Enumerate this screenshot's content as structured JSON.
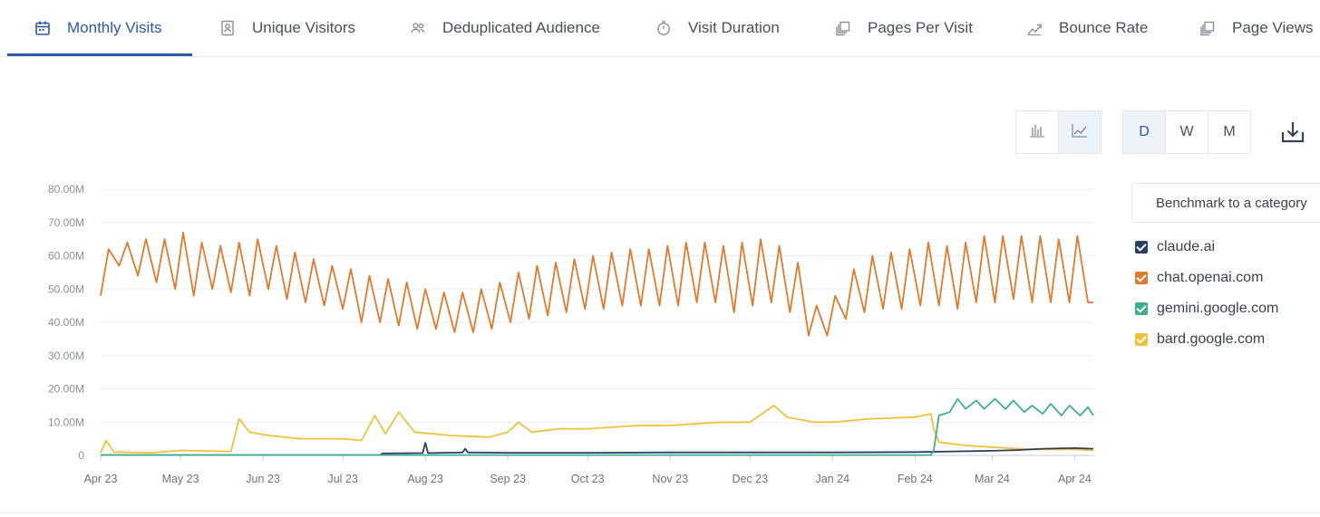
{
  "tabs": [
    {
      "label": "Monthly Visits",
      "icon": "calendar-icon",
      "active": true
    },
    {
      "label": "Unique Visitors",
      "icon": "person-card-icon"
    },
    {
      "label": "Deduplicated Audience",
      "icon": "people-icon"
    },
    {
      "label": "Visit Duration",
      "icon": "stopwatch-icon"
    },
    {
      "label": "Pages Per Visit",
      "icon": "pages-icon"
    },
    {
      "label": "Bounce Rate",
      "icon": "trend-icon"
    },
    {
      "label": "Page Views",
      "icon": "pages-icon"
    }
  ],
  "controls": {
    "chart_type_icons": [
      "bar-chart-icon",
      "line-chart-icon"
    ],
    "granularity": [
      "D",
      "W",
      "M"
    ],
    "selected_granularity": "D",
    "download_icon": "download-icon"
  },
  "benchmark": {
    "label": "Benchmark to a category"
  },
  "colors": {
    "claude": "#2c3e66",
    "openai": "#e07a2e",
    "gemini": "#3fae8c",
    "bard": "#efc23c",
    "accent": "#2b59a6"
  },
  "chart_data": {
    "type": "line",
    "title": "",
    "xlabel": "",
    "ylabel": "",
    "x_range": [
      "2023-04-01",
      "2024-04-08"
    ],
    "ylim": [
      0,
      80000000
    ],
    "y_ticks": [
      "80.00M",
      "70.00M",
      "60.00M",
      "50.00M",
      "40.00M",
      "30.00M",
      "20.00M",
      "10.00M",
      "0"
    ],
    "x_ticks": [
      "Apr 23",
      "May 23",
      "Jun 23",
      "Jul 23",
      "Aug 23",
      "Sep 23",
      "Oct 23",
      "Nov 23",
      "Dec 23",
      "Jan 24",
      "Feb 24",
      "Mar 24",
      "Apr 24"
    ],
    "grid": true,
    "legend_position": "right",
    "series": [
      {
        "name": "claude.ai",
        "color": "#2c3e66",
        "points": [
          [
            "2023-04-01",
            0.1
          ],
          [
            "2023-07-15",
            0.1
          ],
          [
            "2023-07-16",
            0.6
          ],
          [
            "2023-07-31",
            0.7
          ],
          [
            "2023-08-01",
            3.8
          ],
          [
            "2023-08-02",
            0.7
          ],
          [
            "2023-08-15",
            0.9
          ],
          [
            "2023-08-16",
            2.0
          ],
          [
            "2023-08-17",
            0.9
          ],
          [
            "2023-09-01",
            0.8
          ],
          [
            "2023-10-01",
            0.8
          ],
          [
            "2023-11-01",
            0.9
          ],
          [
            "2023-12-01",
            0.9
          ],
          [
            "2024-01-01",
            0.9
          ],
          [
            "2024-02-01",
            1.0
          ],
          [
            "2024-03-01",
            1.4
          ],
          [
            "2024-03-10",
            1.6
          ],
          [
            "2024-03-20",
            2.0
          ],
          [
            "2024-04-01",
            2.2
          ],
          [
            "2024-04-08",
            2.0
          ]
        ]
      },
      {
        "name": "chat.openai.com",
        "color": "#e07a2e",
        "weekly_pattern": "7-day cycle, weekday peaks and weekend troughs",
        "points": [
          [
            "2023-04-01",
            48
          ],
          [
            "2023-04-04",
            62
          ],
          [
            "2023-04-08",
            57
          ],
          [
            "2023-04-11",
            64
          ],
          [
            "2023-04-15",
            54
          ],
          [
            "2023-04-18",
            65
          ],
          [
            "2023-04-22",
            52
          ],
          [
            "2023-04-25",
            65
          ],
          [
            "2023-04-29",
            50
          ],
          [
            "2023-05-02",
            67
          ],
          [
            "2023-05-06",
            48
          ],
          [
            "2023-05-09",
            64
          ],
          [
            "2023-05-13",
            50
          ],
          [
            "2023-05-16",
            63
          ],
          [
            "2023-05-20",
            49
          ],
          [
            "2023-05-23",
            64
          ],
          [
            "2023-05-27",
            48
          ],
          [
            "2023-05-30",
            65
          ],
          [
            "2023-06-03",
            50
          ],
          [
            "2023-06-06",
            63
          ],
          [
            "2023-06-10",
            47
          ],
          [
            "2023-06-13",
            61
          ],
          [
            "2023-06-17",
            46
          ],
          [
            "2023-06-20",
            59
          ],
          [
            "2023-06-24",
            45
          ],
          [
            "2023-06-27",
            57
          ],
          [
            "2023-07-01",
            44
          ],
          [
            "2023-07-04",
            56
          ],
          [
            "2023-07-08",
            40
          ],
          [
            "2023-07-11",
            54
          ],
          [
            "2023-07-15",
            40
          ],
          [
            "2023-07-18",
            53
          ],
          [
            "2023-07-22",
            39
          ],
          [
            "2023-07-25",
            52
          ],
          [
            "2023-07-29",
            38
          ],
          [
            "2023-08-01",
            50
          ],
          [
            "2023-08-05",
            38
          ],
          [
            "2023-08-08",
            49
          ],
          [
            "2023-08-12",
            37
          ],
          [
            "2023-08-15",
            49
          ],
          [
            "2023-08-19",
            37
          ],
          [
            "2023-08-22",
            50
          ],
          [
            "2023-08-26",
            38
          ],
          [
            "2023-08-29",
            52
          ],
          [
            "2023-09-02",
            40
          ],
          [
            "2023-09-05",
            55
          ],
          [
            "2023-09-09",
            41
          ],
          [
            "2023-09-12",
            57
          ],
          [
            "2023-09-16",
            42
          ],
          [
            "2023-09-19",
            58
          ],
          [
            "2023-09-23",
            43
          ],
          [
            "2023-09-26",
            59
          ],
          [
            "2023-09-30",
            44
          ],
          [
            "2023-10-03",
            60
          ],
          [
            "2023-10-07",
            44
          ],
          [
            "2023-10-10",
            61
          ],
          [
            "2023-10-14",
            45
          ],
          [
            "2023-10-17",
            62
          ],
          [
            "2023-10-21",
            45
          ],
          [
            "2023-10-24",
            62
          ],
          [
            "2023-10-28",
            45
          ],
          [
            "2023-10-31",
            63
          ],
          [
            "2023-11-04",
            45
          ],
          [
            "2023-11-07",
            64
          ],
          [
            "2023-11-11",
            46
          ],
          [
            "2023-11-14",
            64
          ],
          [
            "2023-11-18",
            46
          ],
          [
            "2023-11-21",
            63
          ],
          [
            "2023-11-25",
            43
          ],
          [
            "2023-11-28",
            64
          ],
          [
            "2023-12-02",
            45
          ],
          [
            "2023-12-05",
            65
          ],
          [
            "2023-12-09",
            46
          ],
          [
            "2023-12-12",
            63
          ],
          [
            "2023-12-16",
            43
          ],
          [
            "2023-12-19",
            58
          ],
          [
            "2023-12-23",
            36
          ],
          [
            "2023-12-26",
            45
          ],
          [
            "2023-12-30",
            36
          ],
          [
            "2024-01-02",
            48
          ],
          [
            "2024-01-06",
            41
          ],
          [
            "2024-01-09",
            56
          ],
          [
            "2024-01-13",
            43
          ],
          [
            "2024-01-16",
            60
          ],
          [
            "2024-01-20",
            44
          ],
          [
            "2024-01-23",
            61
          ],
          [
            "2024-01-27",
            44
          ],
          [
            "2024-01-30",
            62
          ],
          [
            "2024-02-03",
            45
          ],
          [
            "2024-02-06",
            64
          ],
          [
            "2024-02-10",
            45
          ],
          [
            "2024-02-13",
            63
          ],
          [
            "2024-02-17",
            44
          ],
          [
            "2024-02-20",
            64
          ],
          [
            "2024-02-24",
            46
          ],
          [
            "2024-02-27",
            66
          ],
          [
            "2024-03-02",
            46
          ],
          [
            "2024-03-05",
            66
          ],
          [
            "2024-03-09",
            47
          ],
          [
            "2024-03-12",
            66
          ],
          [
            "2024-03-16",
            46
          ],
          [
            "2024-03-19",
            66
          ],
          [
            "2024-03-23",
            46
          ],
          [
            "2024-03-26",
            65
          ],
          [
            "2024-03-30",
            46
          ],
          [
            "2024-04-02",
            66
          ],
          [
            "2024-04-06",
            46
          ],
          [
            "2024-04-08",
            46
          ]
        ]
      },
      {
        "name": "gemini.google.com",
        "color": "#3fae8c",
        "points": [
          [
            "2023-04-01",
            0.1
          ],
          [
            "2024-02-07",
            0.1
          ],
          [
            "2024-02-08",
            1.5
          ],
          [
            "2024-02-10",
            12.0
          ],
          [
            "2024-02-14",
            13.0
          ],
          [
            "2024-02-17",
            17.0
          ],
          [
            "2024-02-20",
            14.0
          ],
          [
            "2024-02-24",
            16.5
          ],
          [
            "2024-02-27",
            14.0
          ],
          [
            "2024-03-02",
            17.0
          ],
          [
            "2024-03-06",
            14.0
          ],
          [
            "2024-03-09",
            16.5
          ],
          [
            "2024-03-13",
            13.0
          ],
          [
            "2024-03-16",
            15.0
          ],
          [
            "2024-03-20",
            12.5
          ],
          [
            "2024-03-23",
            15.5
          ],
          [
            "2024-03-27",
            12.0
          ],
          [
            "2024-03-30",
            15.0
          ],
          [
            "2024-04-03",
            12.0
          ],
          [
            "2024-04-06",
            14.5
          ],
          [
            "2024-04-08",
            12.0
          ]
        ]
      },
      {
        "name": "bard.google.com",
        "color": "#efc23c",
        "points": [
          [
            "2023-04-01",
            0.8
          ],
          [
            "2023-04-03",
            4.5
          ],
          [
            "2023-04-06",
            1.0
          ],
          [
            "2023-04-20",
            0.8
          ],
          [
            "2023-05-01",
            1.5
          ],
          [
            "2023-05-20",
            1.2
          ],
          [
            "2023-05-23",
            11.0
          ],
          [
            "2023-05-27",
            7.0
          ],
          [
            "2023-06-03",
            6.0
          ],
          [
            "2023-06-15",
            5.0
          ],
          [
            "2023-07-01",
            5.0
          ],
          [
            "2023-07-08",
            4.5
          ],
          [
            "2023-07-13",
            12.0
          ],
          [
            "2023-07-17",
            6.5
          ],
          [
            "2023-07-22",
            13.0
          ],
          [
            "2023-07-28",
            7.0
          ],
          [
            "2023-08-10",
            6.0
          ],
          [
            "2023-08-25",
            5.5
          ],
          [
            "2023-09-01",
            7.0
          ],
          [
            "2023-09-05",
            10.0
          ],
          [
            "2023-09-10",
            7.0
          ],
          [
            "2023-09-20",
            8.0
          ],
          [
            "2023-10-01",
            8.0
          ],
          [
            "2023-10-20",
            9.0
          ],
          [
            "2023-11-01",
            9.0
          ],
          [
            "2023-11-20",
            10.0
          ],
          [
            "2023-12-01",
            10.0
          ],
          [
            "2023-12-10",
            15.0
          ],
          [
            "2023-12-15",
            11.5
          ],
          [
            "2023-12-25",
            10.0
          ],
          [
            "2024-01-01",
            10.0
          ],
          [
            "2024-01-15",
            11.0
          ],
          [
            "2024-02-01",
            11.5
          ],
          [
            "2024-02-07",
            12.5
          ],
          [
            "2024-02-08",
            8.0
          ],
          [
            "2024-02-10",
            4.0
          ],
          [
            "2024-02-20",
            3.0
          ],
          [
            "2024-03-01",
            2.5
          ],
          [
            "2024-03-15",
            1.8
          ],
          [
            "2024-04-01",
            1.8
          ],
          [
            "2024-04-08",
            1.5
          ]
        ]
      }
    ]
  }
}
